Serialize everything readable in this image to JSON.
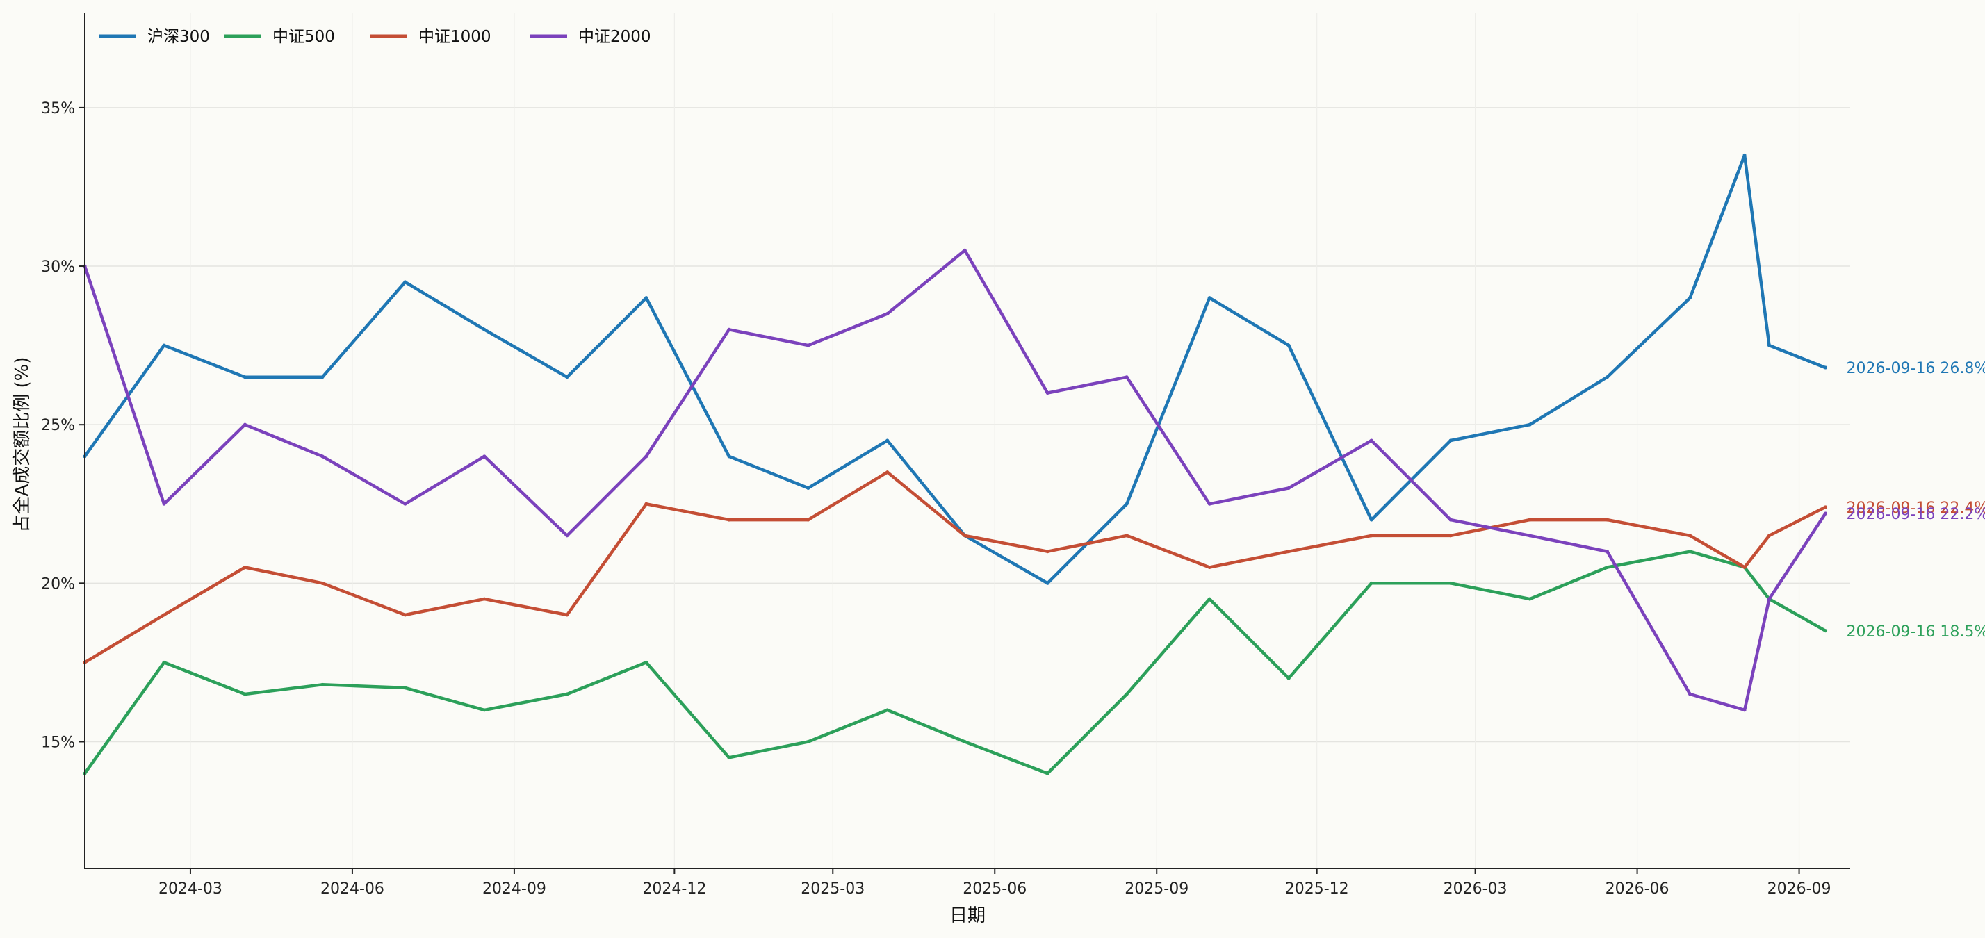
{
  "chart_data": {
    "type": "line",
    "xlabel": "日期",
    "ylabel": "占全A成交额比例 (%)",
    "xlim": [
      "2024-01-01",
      "2026-09-30"
    ],
    "ylim": [
      11,
      38
    ],
    "grid": true,
    "legend_position": "top-left",
    "x_ticks": [
      "2024-03",
      "2024-06",
      "2024-09",
      "2024-12",
      "2025-03",
      "2025-06",
      "2025-09",
      "2025-12",
      "2026-03",
      "2026-06",
      "2026-09"
    ],
    "y_ticks": [
      15,
      20,
      25,
      30,
      35
    ],
    "y_tick_labels": [
      "15%",
      "20%",
      "25%",
      "30%",
      "35%"
    ],
    "x": [
      "2024-01-01",
      "2024-02-15",
      "2024-04-01",
      "2024-05-15",
      "2024-07-01",
      "2024-08-15",
      "2024-10-01",
      "2024-11-15",
      "2025-01-01",
      "2025-02-15",
      "2025-04-01",
      "2025-05-15",
      "2025-07-01",
      "2025-08-15",
      "2025-10-01",
      "2025-11-15",
      "2026-01-01",
      "2026-02-15",
      "2026-04-01",
      "2026-05-15",
      "2026-07-01",
      "2026-08-01",
      "2026-08-15",
      "2026-09-16"
    ],
    "series": [
      {
        "name": "沪深300",
        "color": "#1f77b4",
        "values": [
          24.0,
          27.5,
          26.5,
          26.5,
          29.5,
          28.0,
          26.5,
          29.0,
          24.0,
          23.0,
          24.5,
          21.5,
          20.0,
          22.5,
          29.0,
          27.5,
          22.0,
          24.5,
          25.0,
          26.5,
          29.0,
          33.5,
          27.5,
          26.8
        ]
      },
      {
        "name": "中证500",
        "color": "#2ca05a",
        "values": [
          14.0,
          17.5,
          16.5,
          16.8,
          16.7,
          16.0,
          16.5,
          17.5,
          14.5,
          15.0,
          16.0,
          15.0,
          14.0,
          16.5,
          19.5,
          17.0,
          20.0,
          20.0,
          19.5,
          20.5,
          21.0,
          20.5,
          19.5,
          18.5
        ]
      },
      {
        "name": "中证1000",
        "color": "#c44e35",
        "values": [
          17.5,
          19.0,
          20.5,
          20.0,
          19.0,
          19.5,
          19.0,
          22.5,
          22.0,
          22.0,
          23.5,
          21.5,
          21.0,
          21.5,
          20.5,
          21.0,
          21.5,
          21.5,
          22.0,
          22.0,
          21.5,
          20.5,
          21.5,
          22.4
        ]
      },
      {
        "name": "中证2000",
        "color": "#7b42bc",
        "values": [
          30.0,
          22.5,
          25.0,
          24.0,
          22.5,
          24.0,
          21.5,
          24.0,
          28.0,
          27.5,
          28.5,
          30.5,
          26.0,
          26.5,
          22.5,
          23.0,
          24.5,
          22.0,
          21.5,
          21.0,
          16.5,
          16.0,
          19.5,
          22.2
        ]
      }
    ],
    "end_labels": [
      {
        "series": "沪深300",
        "text": "2026-09-16  26.8%"
      },
      {
        "series": "中证1000",
        "text": "2026-09-16  22.4%"
      },
      {
        "series": "中证2000",
        "text": "2026-09-16  22.2%"
      },
      {
        "series": "中证500",
        "text": "2026-09-16  18.5%"
      }
    ]
  }
}
